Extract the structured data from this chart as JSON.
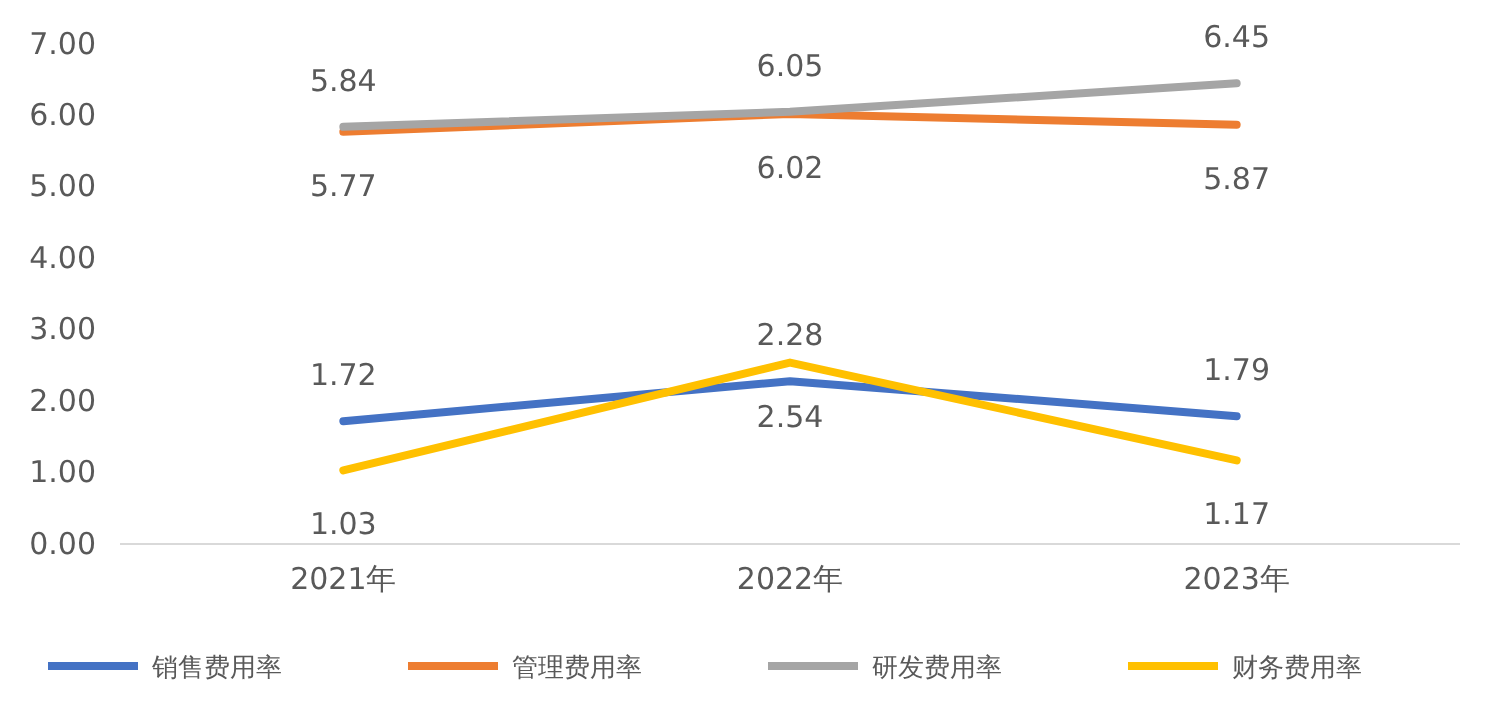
{
  "chart_data": {
    "type": "line",
    "categories": [
      "2021年",
      "2022年",
      "2023年"
    ],
    "series": [
      {
        "name": "销售费用率",
        "color": "#4472c4",
        "values": [
          1.72,
          2.28,
          1.79
        ]
      },
      {
        "name": "管理费用率",
        "color": "#ed7d31",
        "values": [
          5.77,
          6.02,
          5.87
        ]
      },
      {
        "name": "研发费用率",
        "color": "#a5a5a5",
        "values": [
          5.84,
          6.05,
          6.45
        ]
      },
      {
        "name": "财务费用率",
        "color": "#ffc000",
        "values": [
          1.03,
          2.54,
          1.17
        ]
      }
    ],
    "ylim": [
      0,
      7
    ],
    "yticks": [
      {
        "value": 0,
        "label": "0.00"
      },
      {
        "value": 1,
        "label": "1.00"
      },
      {
        "value": 2,
        "label": "2.00"
      },
      {
        "value": 3,
        "label": "3.00"
      },
      {
        "value": 4,
        "label": "4.00"
      },
      {
        "value": 5,
        "label": "5.00"
      },
      {
        "value": 6,
        "label": "6.00"
      },
      {
        "value": 7,
        "label": "7.00"
      }
    ],
    "grid": false,
    "legend": "bottom",
    "marker": "none",
    "line_style": "solid",
    "data_labels": true
  }
}
